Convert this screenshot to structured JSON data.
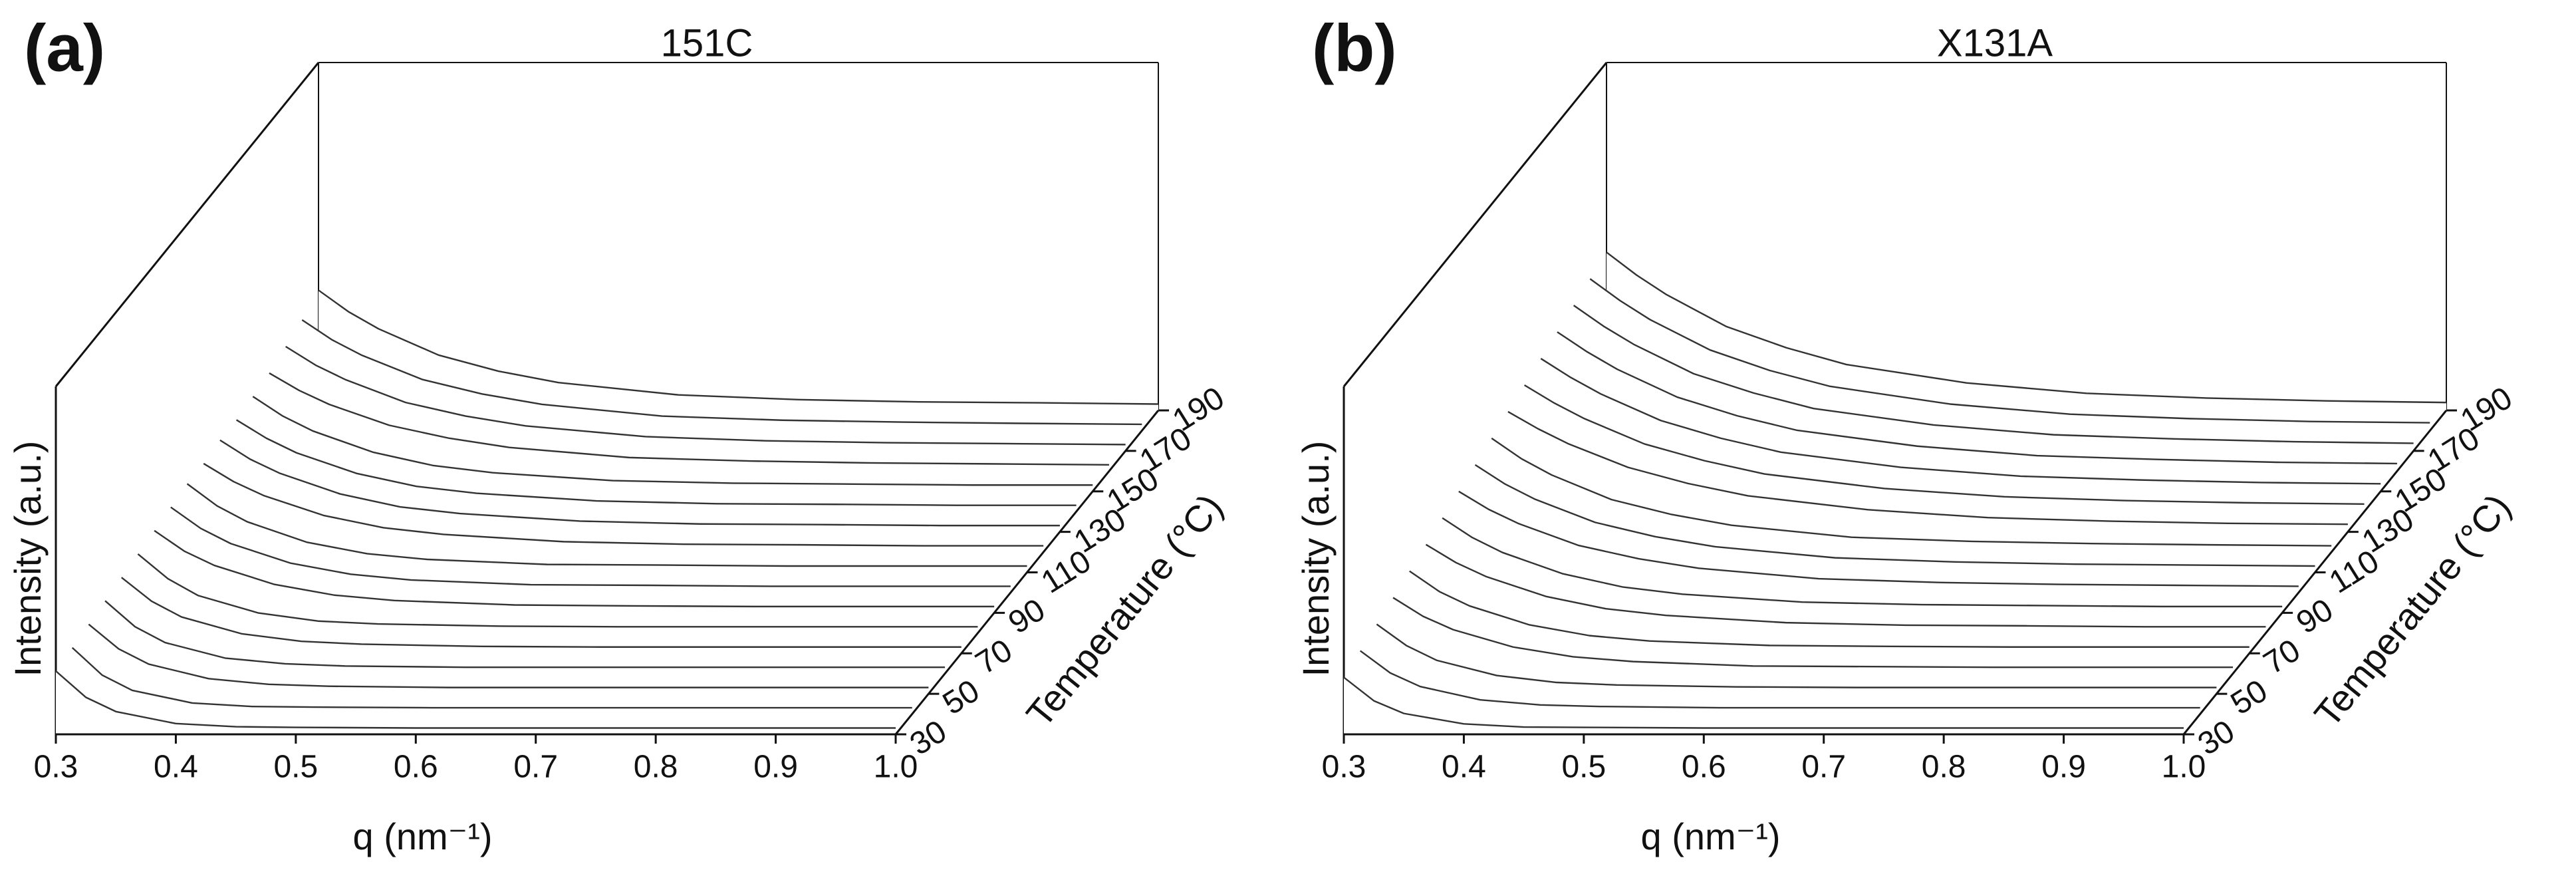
{
  "chart_data": [
    {
      "type": "waterfall",
      "panel_label": "(a)",
      "title": "151C",
      "xlabel": "q (nm⁻¹)",
      "ylabel": "Intensity (a.u.)",
      "zlabel": "Temperature (°C)",
      "x": [
        0.3,
        0.325,
        0.35,
        0.4,
        0.45,
        0.5,
        0.6,
        0.7,
        0.8,
        0.9,
        1.0
      ],
      "xlim": [
        0.3,
        1.0
      ],
      "xticks": [
        0.3,
        0.4,
        0.5,
        0.6,
        0.7,
        0.8,
        0.9,
        {
          "value": 1.0,
          "label": "1.0"
        }
      ],
      "zlim": [
        0,
        110
      ],
      "tlim": [
        30,
        190
      ],
      "tticks": [
        30,
        50,
        70,
        90,
        110,
        130,
        150,
        170,
        190
      ],
      "temperatures": [
        30,
        40,
        50,
        60,
        70,
        80,
        90,
        100,
        110,
        120,
        130,
        140,
        150,
        160,
        170,
        180,
        190
      ],
      "color": "#333333",
      "series": [
        {
          "values": [
            20,
            11.7,
            7.2,
            3.4,
            2.4,
            2.2,
            2,
            2,
            2,
            2,
            2
          ]
        },
        {
          "values": [
            21,
            12.3,
            7.5,
            3.5,
            2.4,
            2.2,
            2,
            2,
            2,
            2,
            2
          ]
        },
        {
          "values": [
            22,
            14.2,
            9.4,
            4.8,
            3,
            2.4,
            2,
            2,
            2,
            2,
            2
          ]
        },
        {
          "values": [
            23,
            14.8,
            9.8,
            4.9,
            3.1,
            2.4,
            2,
            2,
            2,
            2,
            2
          ]
        },
        {
          "values": [
            24,
            16.5,
            11.5,
            6.2,
            3.8,
            2.9,
            2.2,
            2,
            2,
            2,
            2
          ]
        },
        {
          "values": [
            25,
            17.2,
            11.9,
            6.4,
            3.8,
            2.9,
            2.2,
            2,
            2,
            2,
            2
          ]
        },
        {
          "values": [
            26,
            19.5,
            15,
            9,
            5.6,
            3.9,
            2.5,
            2.2,
            2,
            2,
            2
          ]
        },
        {
          "values": [
            27,
            20.3,
            15.5,
            9.3,
            5.8,
            4,
            2.5,
            2.3,
            2,
            2,
            2
          ]
        },
        {
          "values": [
            28,
            21,
            16,
            9.5,
            5.9,
            4.1,
            2.5,
            2.3,
            2,
            2,
            2
          ]
        },
        {
          "values": [
            28,
            22.3,
            17.9,
            11.6,
            7.7,
            5.6,
            3.3,
            2.5,
            2.3,
            2,
            2
          ]
        },
        {
          "values": [
            29,
            23,
            18.5,
            12,
            7.9,
            5.8,
            3.4,
            2.5,
            2.3,
            2,
            2
          ]
        },
        {
          "values": [
            29,
            23.2,
            18.6,
            12.1,
            8,
            5.8,
            3.4,
            2.5,
            2.3,
            2,
            2
          ]
        },
        {
          "values": [
            30,
            23.8,
            19.1,
            12.4,
            8.2,
            5.9,
            3.4,
            2.6,
            2.3,
            2,
            2
          ]
        },
        {
          "values": [
            31,
            25.5,
            21.1,
            14.5,
            10.4,
            7.5,
            4.3,
            3.2,
            2.6,
            2.3,
            2
          ]
        },
        {
          "values": [
            33,
            27.1,
            22.5,
            15.3,
            11,
            7.9,
            4.5,
            3.2,
            2.6,
            2.3,
            2
          ]
        },
        {
          "values": [
            35,
            28.7,
            23.8,
            16.2,
            11.6,
            8.3,
            4.6,
            3.3,
            2.7,
            2.3,
            2
          ]
        },
        {
          "values": [
            38,
            31.2,
            25.8,
            17.5,
            12.4,
            8.8,
            4.9,
            3.4,
            2.7,
            2.4,
            2
          ]
        }
      ]
    },
    {
      "type": "waterfall",
      "panel_label": "(b)",
      "title": "X131A",
      "xlabel": "q (nm⁻¹)",
      "ylabel": "Intensity (a.u.)",
      "zlabel": "Temperature (°C)",
      "x": [
        0.3,
        0.325,
        0.35,
        0.4,
        0.45,
        0.5,
        0.6,
        0.7,
        0.8,
        0.9,
        1.0
      ],
      "xlim": [
        0.3,
        1.0
      ],
      "xticks": [
        0.3,
        0.4,
        0.5,
        0.6,
        0.7,
        0.8,
        0.9,
        {
          "value": 1.0,
          "label": "1.0"
        }
      ],
      "zlim": [
        0,
        110
      ],
      "tlim": [
        30,
        190
      ],
      "tticks": [
        30,
        50,
        70,
        90,
        110,
        130,
        150,
        170,
        190
      ],
      "temperatures": [
        30,
        40,
        50,
        60,
        70,
        80,
        90,
        100,
        110,
        120,
        130,
        140,
        150,
        160,
        170,
        180,
        190
      ],
      "color": "#333333",
      "series": [
        {
          "values": [
            18,
            10.6,
            6.6,
            3.3,
            2.3,
            2.2,
            2,
            2,
            2,
            2,
            2
          ]
        },
        {
          "values": [
            20,
            13,
            8.7,
            4.5,
            2.9,
            2.4,
            2,
            2,
            2,
            2,
            2
          ]
        },
        {
          "values": [
            22,
            15.2,
            10.6,
            5.8,
            3.6,
            2.8,
            2.2,
            2,
            2,
            2,
            2
          ]
        },
        {
          "values": [
            24,
            18.1,
            13.9,
            8.4,
            5.3,
            3.8,
            2.4,
            2.2,
            2,
            2,
            2
          ]
        },
        {
          "values": [
            26,
            19.5,
            15,
            9,
            5.6,
            3.9,
            2.5,
            2.2,
            2,
            2,
            2
          ]
        },
        {
          "values": [
            28,
            22.3,
            17.9,
            11.6,
            7.7,
            5.6,
            3.3,
            2.5,
            2.3,
            2,
            2
          ]
        },
        {
          "values": [
            30,
            23.8,
            19.1,
            12.4,
            8.2,
            5.9,
            3.4,
            2.6,
            2.3,
            2,
            2
          ]
        },
        {
          "values": [
            32,
            26.3,
            21.8,
            14.9,
            10.7,
            7.7,
            4.4,
            3.2,
            2.6,
            2.3,
            2
          ]
        },
        {
          "values": [
            34,
            27.9,
            23.1,
            15.8,
            11.3,
            8.1,
            4.6,
            3.3,
            2.6,
            2.3,
            2
          ]
        },
        {
          "values": [
            36,
            29.5,
            24.4,
            16.6,
            11.9,
            8.5,
            4.7,
            3.4,
            2.7,
            2.3,
            2
          ]
        },
        {
          "values": [
            38,
            32.6,
            27.9,
            20.4,
            15.3,
            11.4,
            7,
            4.5,
            3.4,
            2.7,
            2.4
          ]
        },
        {
          "values": [
            40,
            34.3,
            29.4,
            21.4,
            16.1,
            11.9,
            7.3,
            4.7,
            3.5,
            2.8,
            2.4
          ]
        },
        {
          "values": [
            42,
            36,
            30.8,
            22.4,
            16.8,
            12.4,
            7.6,
            4.8,
            3.6,
            2.8,
            2.4
          ]
        },
        {
          "values": [
            44,
            37.7,
            32.2,
            23.4,
            17.5,
            12.9,
            7.9,
            4.9,
            3.7,
            2.8,
            2.4
          ]
        },
        {
          "values": [
            46,
            39.4,
            33.7,
            24.4,
            18.3,
            13.4,
            8.2,
            5.1,
            3.8,
            2.9,
            2.4
          ]
        },
        {
          "values": [
            48,
            41.1,
            35.1,
            25.5,
            19,
            14,
            8.4,
            5.2,
            3.8,
            2.9,
            2.5
          ]
        },
        {
          "values": [
            50,
            42.8,
            36.6,
            26.5,
            19.8,
            14.5,
            8.7,
            5.4,
            3.9,
            3,
            2.5
          ]
        }
      ]
    }
  ]
}
